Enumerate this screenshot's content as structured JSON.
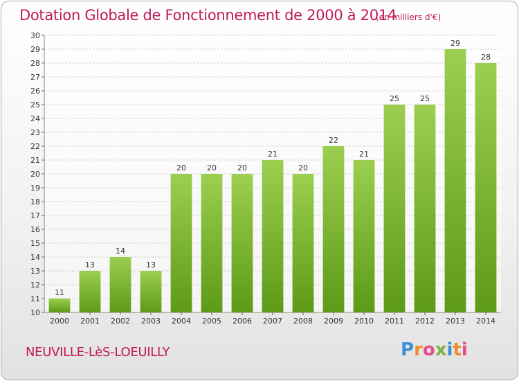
{
  "header": {
    "title": "Dotation Globale de Fonctionnement de 2000 à 2014",
    "unit": "(en milliers d'€)"
  },
  "footer": {
    "commune": "NEUVILLE-LèS-LOEUILLY",
    "logo_text": "Proxiti",
    "logo_colors": [
      "#3b8fd6",
      "#f08c2a",
      "#e84a8a",
      "#7cb342",
      "#3b8fd6",
      "#f08c2a",
      "#e84a8a"
    ]
  },
  "colors": {
    "title": "#c2185b",
    "bar_top": "#9ccf4f",
    "bar_bottom": "#5d9a17",
    "grid": "#d4d4d4"
  },
  "chart_data": {
    "type": "bar",
    "categories": [
      "2000",
      "2001",
      "2002",
      "2003",
      "2004",
      "2005",
      "2006",
      "2007",
      "2008",
      "2009",
      "2010",
      "2011",
      "2012",
      "2013",
      "2014"
    ],
    "values": [
      11,
      13,
      14,
      13,
      20,
      20,
      20,
      21,
      20,
      22,
      21,
      25,
      25,
      29,
      28
    ],
    "ylim": [
      10,
      30
    ],
    "yticks": [
      10,
      11,
      12,
      13,
      14,
      15,
      16,
      17,
      18,
      19,
      20,
      21,
      22,
      23,
      24,
      25,
      26,
      27,
      28,
      29,
      30
    ],
    "grid": true
  }
}
